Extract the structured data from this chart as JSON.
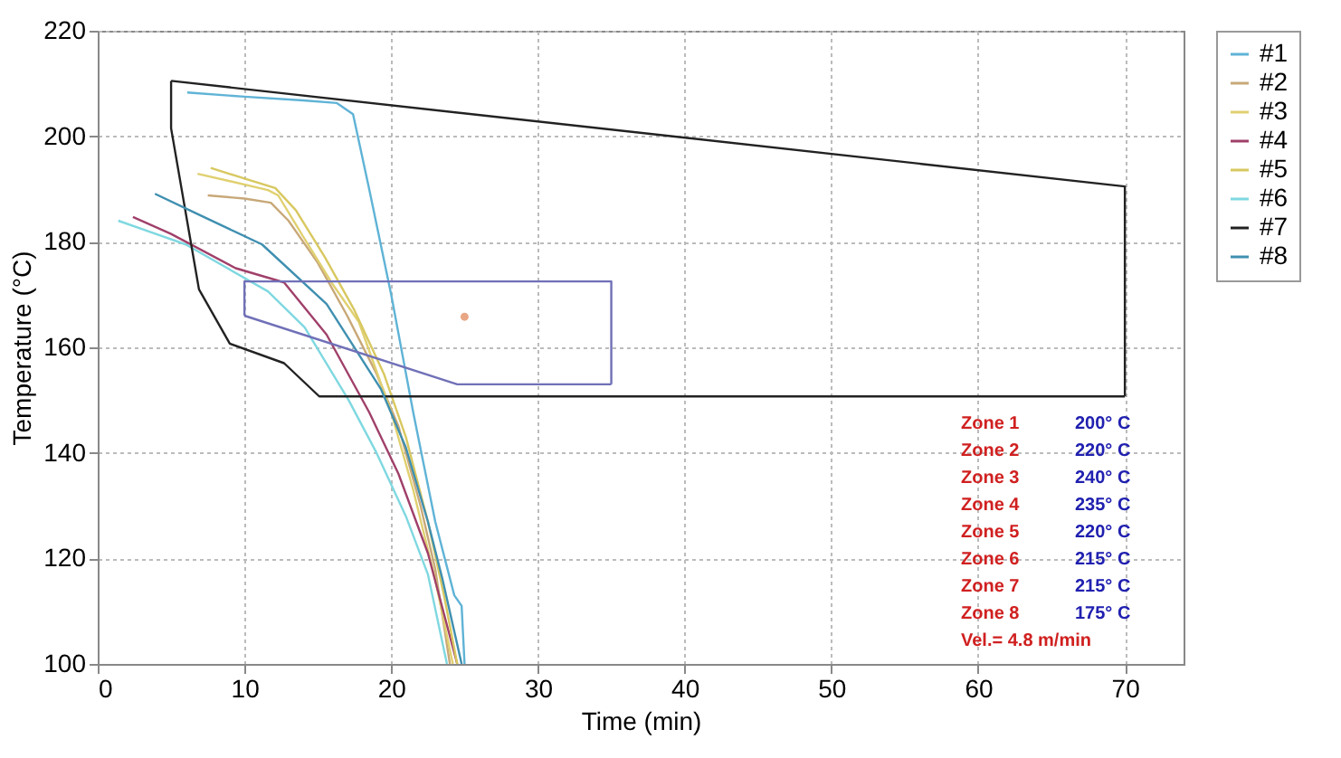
{
  "chart_data": {
    "type": "line",
    "xlabel": "Time (min)",
    "ylabel": "Temperature (°C)",
    "xlim": [
      0,
      74
    ],
    "xticks": [
      0,
      10,
      20,
      30,
      40,
      50,
      60,
      70
    ],
    "ylim": [
      100,
      220
    ],
    "yticks": [
      100,
      120,
      140,
      160,
      180,
      200,
      220
    ],
    "grid": true,
    "legend": "right",
    "line_style": "solid",
    "series": [
      {
        "name": "#1",
        "color": "#5fb3d6",
        "x": [
          6.1,
          10,
          14,
          16.3,
          17.4,
          18.5,
          20,
          21.5,
          23,
          24.3,
          24.8,
          25
        ],
        "values": [
          208.3,
          207.5,
          206.8,
          206.3,
          204.2,
          190,
          170,
          147.7,
          127,
          113,
          111,
          100
        ]
      },
      {
        "name": "#2",
        "color": "#c8a878",
        "x": [
          7.5,
          10,
          11.8,
          13,
          15,
          17,
          19,
          20.5,
          22,
          23,
          24
        ],
        "values": [
          188.8,
          188.2,
          187.4,
          184,
          176,
          166,
          155,
          145,
          130,
          118,
          100
        ]
      },
      {
        "name": "#3",
        "color": "#e0d070",
        "x": [
          6.8,
          9,
          11.6,
          12.3,
          14,
          16,
          17.8,
          20,
          21.5,
          23,
          24.2
        ],
        "values": [
          192.9,
          191.5,
          189.8,
          188.8,
          181,
          172,
          164.8,
          147.7,
          133,
          116,
          100
        ]
      },
      {
        "name": "#4",
        "color": "#a0406a",
        "x": [
          2.4,
          5,
          9.4,
          12.7,
          15.6,
          18.5,
          20.5,
          22.5,
          24.5
        ],
        "values": [
          184.7,
          181.5,
          175,
          172.3,
          162.4,
          147.7,
          136,
          121,
          100
        ]
      },
      {
        "name": "#5",
        "color": "#d8c860",
        "x": [
          7.7,
          10,
          12.1,
          13.5,
          15.5,
          17.5,
          19.5,
          21,
          22.5,
          23.6,
          24.5
        ],
        "values": [
          194,
          192,
          190.2,
          186,
          177,
          167,
          155,
          143,
          127,
          113,
          100
        ]
      },
      {
        "name": "#6",
        "color": "#7fd8e0",
        "x": [
          1.4,
          6,
          11.6,
          14.1,
          17.1,
          19,
          21,
          22.5,
          23.8
        ],
        "values": [
          184,
          179.5,
          170.6,
          163.8,
          150,
          140,
          128,
          117,
          100
        ]
      },
      {
        "name": "#7",
        "color": "#222222",
        "x": [
          5,
          70,
          70
        ],
        "values": [
          210.5,
          190.5,
          150.7
        ]
      },
      {
        "color": "#222222",
        "x": [
          5,
          5,
          6.9,
          9,
          12.7,
          15.1,
          70
        ],
        "values": [
          210.5,
          201.5,
          171,
          160.7,
          157,
          150.7,
          150.7
        ]
      },
      {
        "name": "#8",
        "color": "#3f8fb0",
        "x": [
          3.9,
          7,
          11.2,
          15.6,
          19.3,
          21,
          22.5,
          23.5,
          24.8
        ],
        "values": [
          189.1,
          185,
          179.5,
          168.2,
          152.1,
          141,
          127,
          116,
          100
        ]
      },
      {
        "color": "#7070b8",
        "x": [
          10,
          10,
          35,
          35
        ],
        "values": [
          166,
          172.5,
          172.5,
          153
        ]
      },
      {
        "color": "#7070b8",
        "x": [
          10,
          24.5,
          35
        ],
        "values": [
          166,
          153,
          153
        ]
      },
      {
        "type": "scatter",
        "marker": "circle",
        "color": "#e08050",
        "x": [
          25
        ],
        "values": [
          165.8
        ]
      }
    ],
    "annotations": [
      "Zone 1",
      "200° C",
      "Zone 2",
      "220° C",
      "Zone 3",
      "240° C",
      "Zone 4",
      "235° C",
      "Zone 5",
      "220° C",
      "Zone 6",
      "215° C",
      "Zone 7",
      "215° C",
      "Zone 8",
      "175° C",
      "Vel.= 4.8 m/min"
    ]
  }
}
